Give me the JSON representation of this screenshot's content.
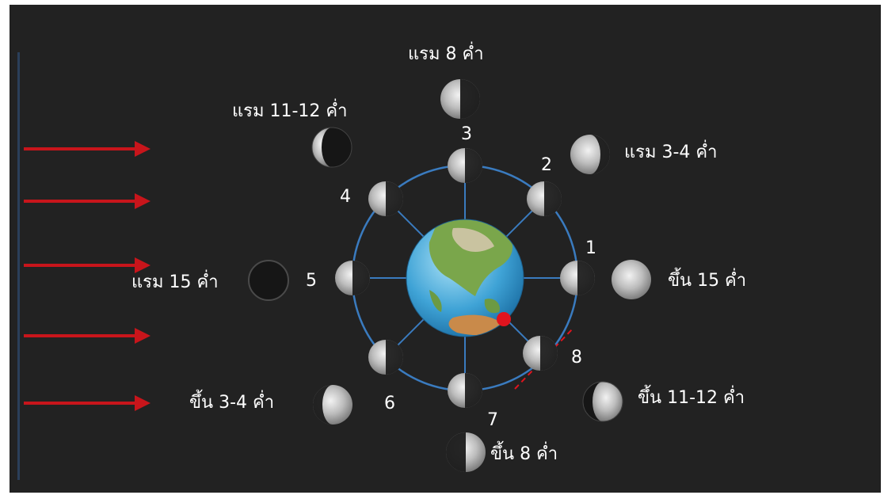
{
  "colors": {
    "background": "#222222",
    "orbit": "#3a7bbf",
    "arrow": "#c8151b",
    "observer": "#e0141e",
    "text": "#ffffff"
  },
  "sunlight_arrows": 5,
  "orbit_positions": [
    {
      "number": "1",
      "lit_side": "left"
    },
    {
      "number": "2",
      "lit_side": "left"
    },
    {
      "number": "3",
      "lit_side": "left"
    },
    {
      "number": "4",
      "lit_side": "left"
    },
    {
      "number": "5",
      "lit_side": "left"
    },
    {
      "number": "6",
      "lit_side": "left"
    },
    {
      "number": "7",
      "lit_side": "left"
    },
    {
      "number": "8",
      "lit_side": "left"
    }
  ],
  "phase_labels": [
    {
      "text": "ขึ้น 15 ค่ำ",
      "appearance": "full"
    },
    {
      "text": "แรม 3-4 ค่ำ",
      "appearance": "waning-gibbous"
    },
    {
      "text": "แรม 8 ค่ำ",
      "appearance": "last-quarter"
    },
    {
      "text": "แรม 11-12 ค่ำ",
      "appearance": "waning-crescent"
    },
    {
      "text": "แรม 15 ค่ำ",
      "appearance": "new"
    },
    {
      "text": "ขึ้น 3-4 ค่ำ",
      "appearance": "waxing-crescent"
    },
    {
      "text": "ขึ้น 8 ค่ำ",
      "appearance": "first-quarter"
    },
    {
      "text": "ขึ้น 11-12 ค่ำ",
      "appearance": "waxing-gibbous"
    }
  ]
}
